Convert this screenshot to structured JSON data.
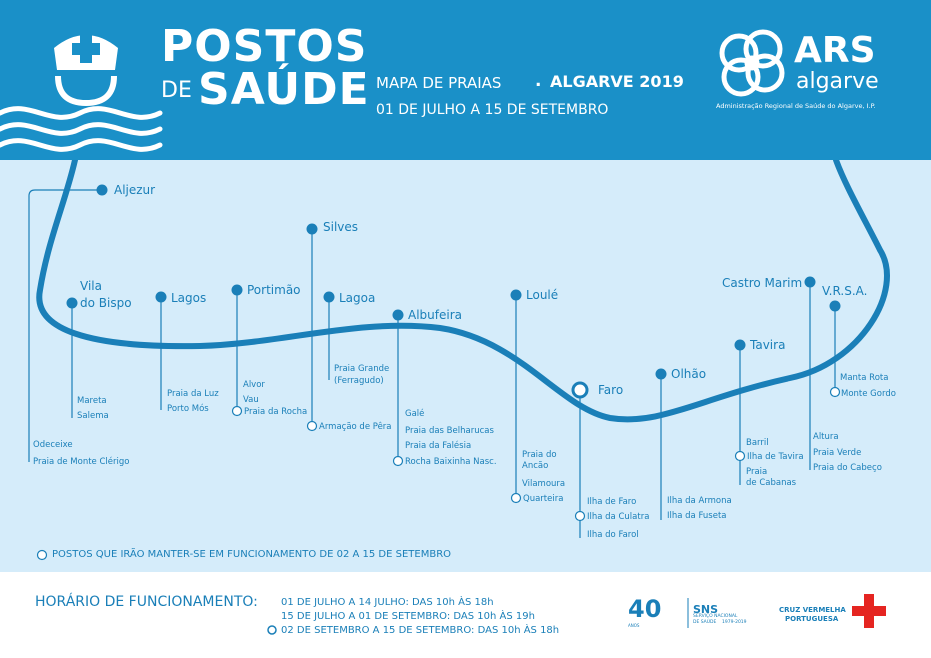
{
  "header": {
    "title_line1": "POSTOS",
    "title_de": "DE",
    "title_line2": "SAÚDE",
    "subtitle_map": "MAPA DE PRAIAS",
    "subtitle_dot": ".",
    "subtitle_region": "ALGARVE 2019",
    "subtitle_dates": "01 DE JULHO A 15 DE SETEMBRO",
    "ars_name": "ARS",
    "ars_region": "algarve",
    "ars_description": "Administração Regional de Saúde do Algarve, I.P."
  },
  "towns": {
    "aljezur": {
      "name": "Aljezur",
      "beaches": [
        "Odeceixe",
        "Praia de Monte Clérigo"
      ],
      "extended_beaches": []
    },
    "vila_do_bispo": {
      "name_line1": "Vila",
      "name_line2": "do Bispo",
      "beaches": [
        "Mareta",
        "Salema"
      ],
      "extended_beaches": []
    },
    "lagos": {
      "name": "Lagos",
      "beaches": [
        "Praia da Luz",
        "Porto Mós"
      ],
      "extended_beaches": []
    },
    "portimao": {
      "name": "Portimão",
      "beaches": [
        "Alvor",
        "Vau"
      ],
      "extended_beaches": [
        "Praia da Rocha"
      ]
    },
    "silves": {
      "name": "Silves",
      "beaches": [],
      "extended_beaches": [
        "Armação de Pêra"
      ]
    },
    "lagoa": {
      "name": "Lagoa",
      "beaches": [
        "Praia Grande",
        "(Ferragudo)"
      ],
      "extended_beaches": []
    },
    "albufeira": {
      "name": "Albufeira",
      "beaches": [
        "Galé",
        "Praia das Belharucas",
        "Praia da Falésia"
      ],
      "extended_beaches": [
        "Rocha Baixinha Nasc."
      ]
    },
    "loule": {
      "name": "Loulé",
      "beaches": [
        "Praia do",
        "Ancão",
        "Vilamoura"
      ],
      "extended_beaches": [
        "Quarteira"
      ]
    },
    "faro": {
      "name": "Faro",
      "beaches": [
        "Ilha de Faro",
        "Ilha do Farol"
      ],
      "extended_beaches": [
        "Ilha da Culatra"
      ]
    },
    "olhao": {
      "name": "Olhão",
      "beaches": [
        "Ilha da Armona",
        "Ilha da Fuseta"
      ],
      "extended_beaches": []
    },
    "tavira": {
      "name": "Tavira",
      "beaches": [
        "Barril",
        "Praia",
        "de Cabanas"
      ],
      "extended_beaches": [
        "Ilha de Tavira"
      ]
    },
    "castro_marim": {
      "name": "Castro Marim",
      "beaches": [
        "Altura",
        "Praia Verde",
        "Praia do Cabeço"
      ],
      "extended_beaches": []
    },
    "vrsa": {
      "name": "V.R.S.A.",
      "beaches": [
        "Manta Rota"
      ],
      "extended_beaches": [
        "Monte Gordo"
      ]
    }
  },
  "legend": {
    "text": "POSTOS QUE IRÃO MANTER-SE EM FUNCIONAMENTO DE 02 A 15 DE SETEMBRO"
  },
  "footer": {
    "hours_label": "HORÁRIO DE FUNCIONAMENTO:",
    "hours": [
      "01 DE JULHO A 14 JULHO: DAS 10h ÀS 18h",
      "15 DE JULHO A 01 DE SETEMBRO: DAS 10h ÀS 19h",
      "02 DE SETEMBRO A 15 DE SETEMBRO: DAS 10h ÀS 18h"
    ],
    "sns_anniversary": "40",
    "sns_anos": "ANOS",
    "sns_label": "SNS",
    "sns_sub_line1": "SERVIÇO NACIONAL",
    "sns_sub_line2": "DE SAÚDE",
    "sns_years": "1979-2019",
    "cruz_line1": "CRUZ VERMELHA",
    "cruz_line2": "PORTUGUESA"
  },
  "colors": {
    "header_bg": "#1a90c8",
    "map_bg": "#d5ecfa",
    "line": "#1a7fb8",
    "text": "#1a7fb8",
    "red_cross": "#e52521"
  }
}
